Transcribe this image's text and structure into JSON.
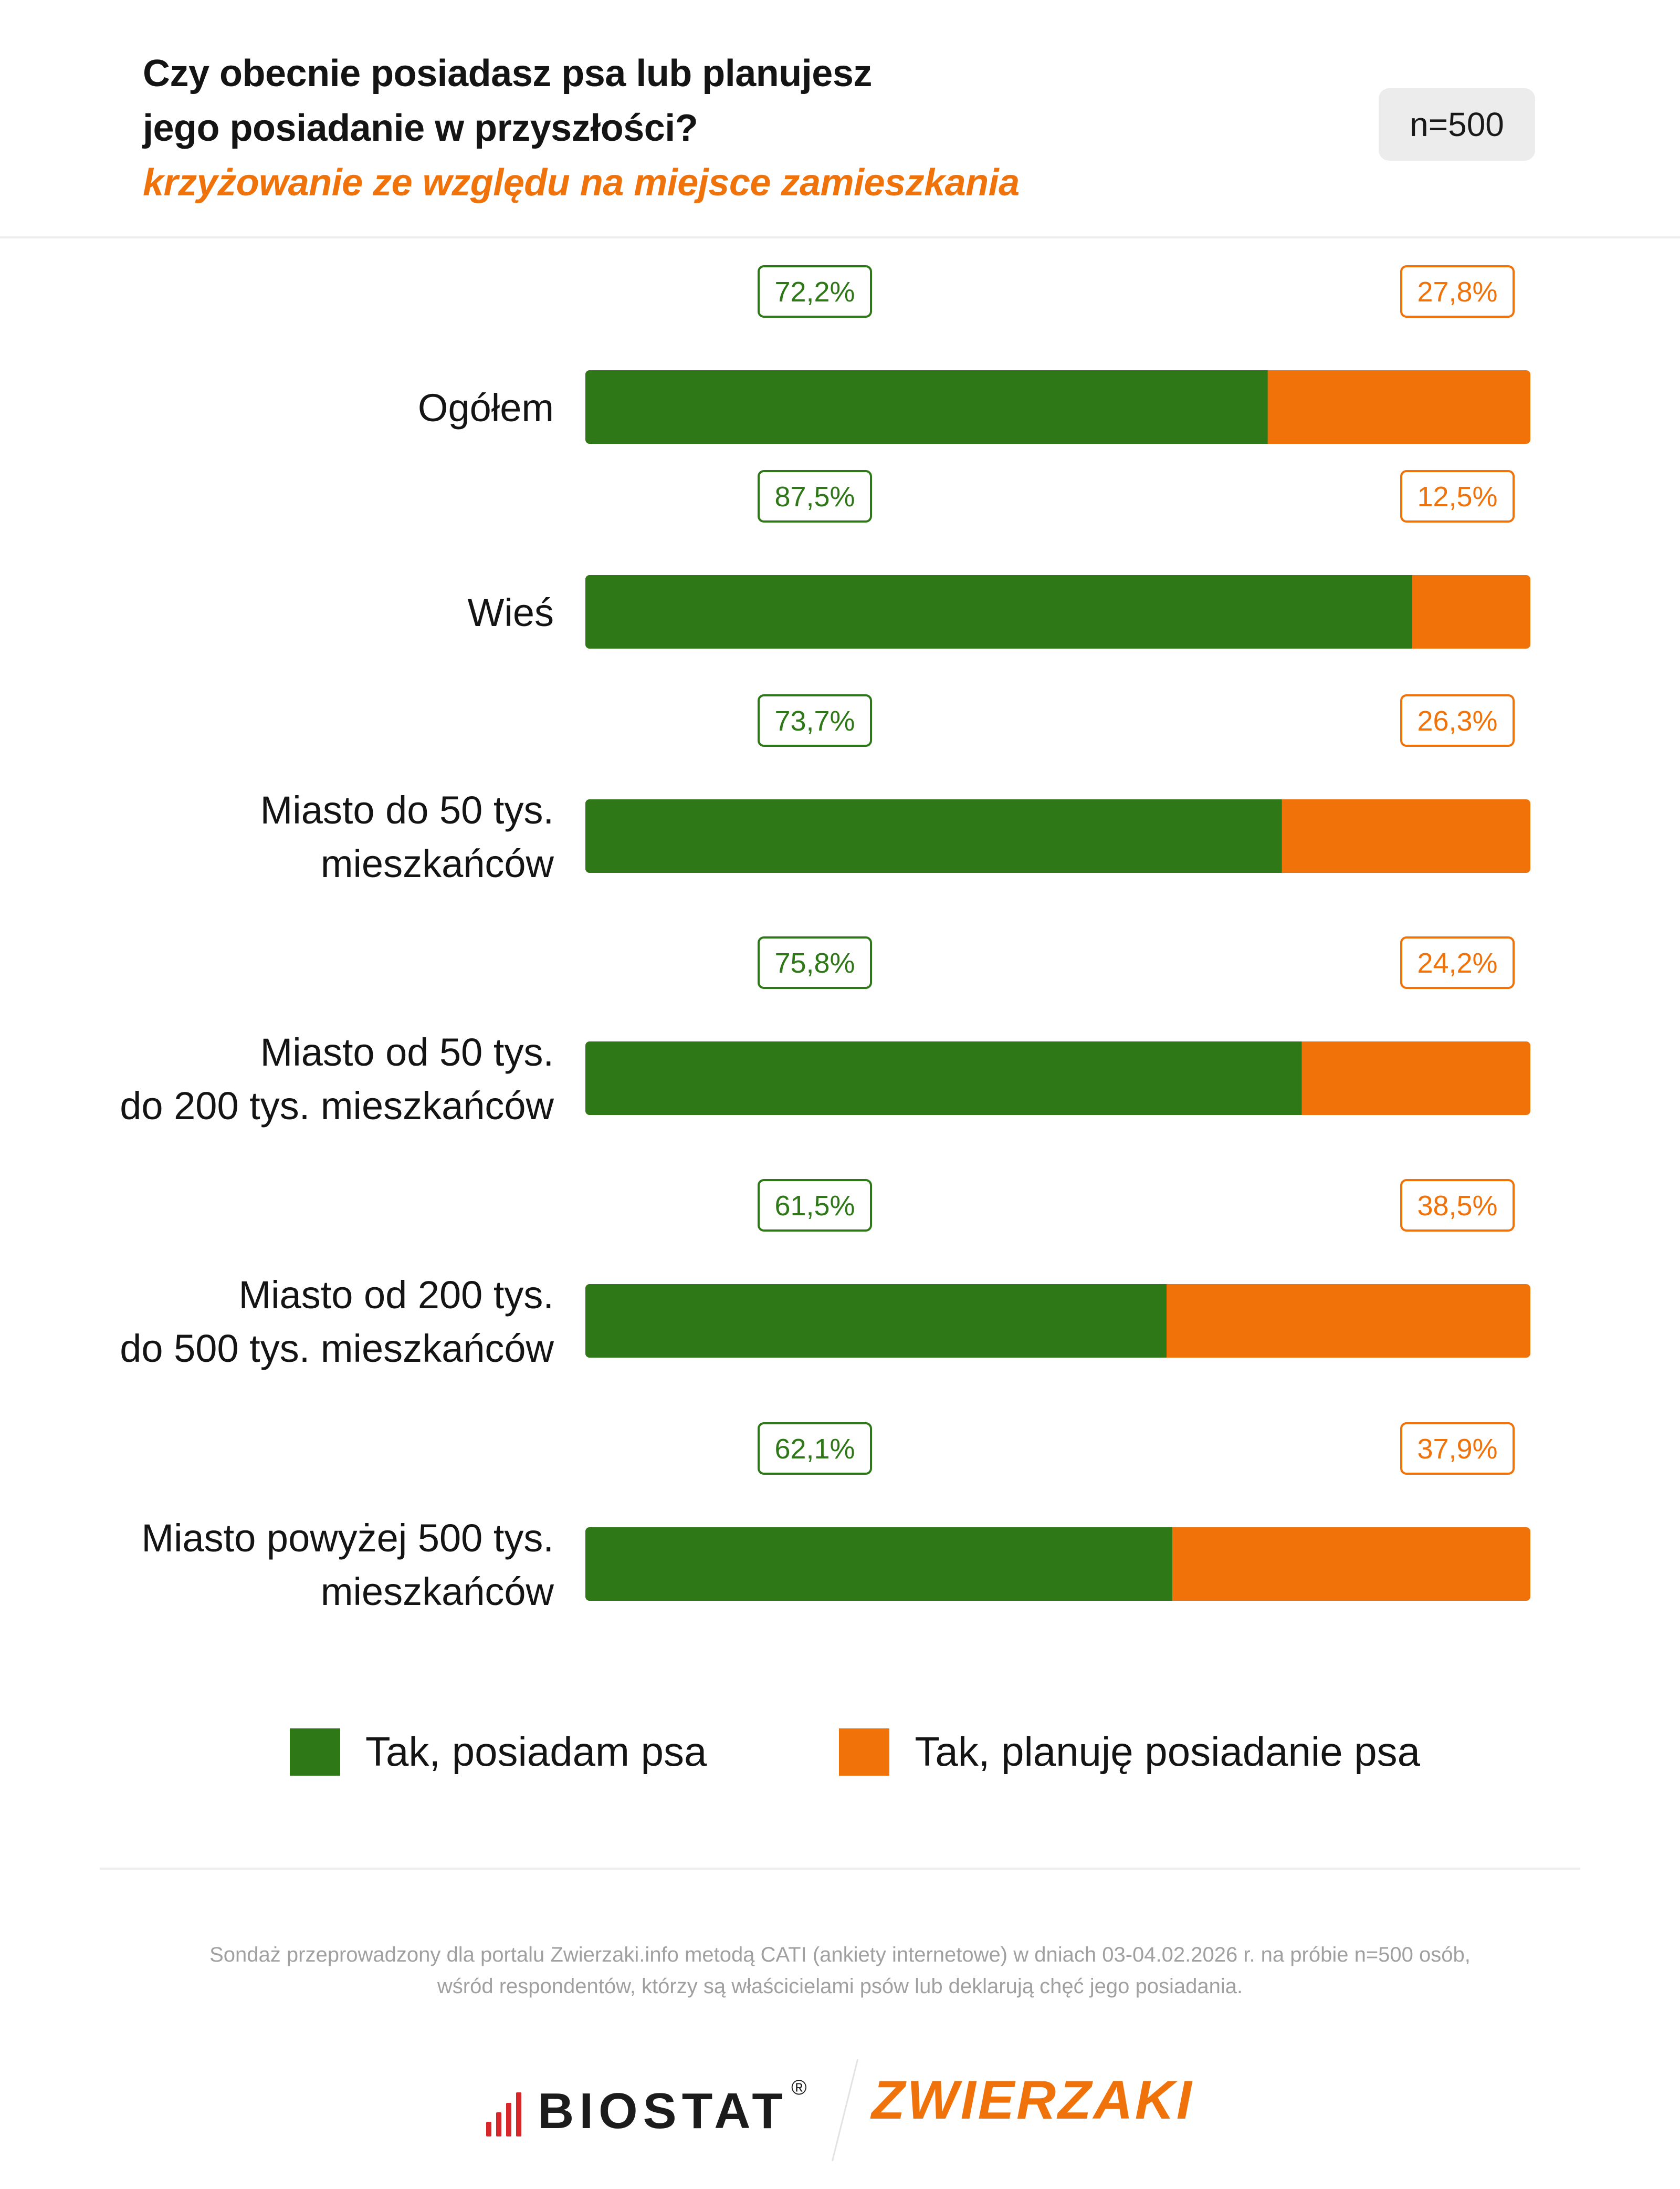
{
  "header": {
    "title_line1": "Czy obecnie posiadasz psa lub planujesz",
    "title_line2": "jego posiadanie w przyszłości?",
    "subtitle": "krzyżowanie ze względu na miejsce zamieszkania",
    "sample": "n=500"
  },
  "colors": {
    "own": "#2e7818",
    "plan": "#f07209",
    "text": "#141414",
    "note": "#a0a0a0"
  },
  "chart_data": {
    "type": "bar",
    "orientation": "horizontal",
    "stacked": true,
    "categories": [
      [
        "Ogółem"
      ],
      [
        "Wieś"
      ],
      [
        "Miasto do 50 tys.",
        "mieszkańców"
      ],
      [
        "Miasto od 50 tys.",
        "do 200 tys. mieszkańców"
      ],
      [
        "Miasto od 200 tys.",
        "do 500 tys. mieszkańców"
      ],
      [
        "Miasto powyżej 500 tys.",
        "mieszkańców"
      ]
    ],
    "series": [
      {
        "name": "Tak, posiadam psa",
        "values": [
          72.2,
          87.5,
          73.7,
          75.8,
          61.5,
          62.1
        ],
        "labels": [
          "72,2%",
          "87,5%",
          "73,7%",
          "75,8%",
          "61,5%",
          "62,1%"
        ]
      },
      {
        "name": "Tak, planuję posiadanie psa",
        "values": [
          27.8,
          12.5,
          26.3,
          24.2,
          38.5,
          37.9
        ],
        "labels": [
          "27,8%",
          "12,5%",
          "26,3%",
          "24,2%",
          "38,5%",
          "37,9%"
        ]
      }
    ],
    "xlim": [
      0,
      100
    ],
    "legend": "bottom"
  },
  "legend": {
    "own_label": "Tak, posiadam psa",
    "plan_label": "Tak, planuję posiadanie psa"
  },
  "footnote": {
    "line1": "Sondaż przeprowadzony dla portalu Zwierzaki.info metodą CATI (ankiety internetowe) w dniach 03-04.02.2026 r. na próbie n=500 osób,",
    "line2": "wśród respondentów, którzy są właścicielami psów lub deklarują chęć jego posiadania."
  },
  "logos": {
    "biostat": "BIOSTAT",
    "biostat_mark": "®",
    "zwierzaki": "ZWIERZAKI"
  }
}
